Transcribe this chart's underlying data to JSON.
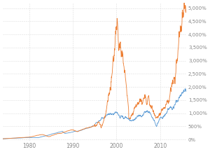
{
  "background_color": "#ffffff",
  "grid_color": "#dddddd",
  "line1_color": "#5b9bd5",
  "line2_color": "#ed7d31",
  "xlim_start": 1974,
  "xlim_end": 2016,
  "ylim_min": -50,
  "ylim_max": 5200,
  "yticks": [
    0,
    500,
    1000,
    1500,
    2000,
    2500,
    3000,
    3500,
    4000,
    4500,
    5000
  ],
  "ytick_labels": [
    "0%",
    "500%",
    "1,000%",
    "1,500%",
    "2,000%",
    "2,500%",
    "3,000%",
    "3,500%",
    "4,000%",
    "4,500%",
    "5,000%"
  ],
  "xticks": [
    1980,
    1990,
    2000,
    2010
  ],
  "seed": 7
}
